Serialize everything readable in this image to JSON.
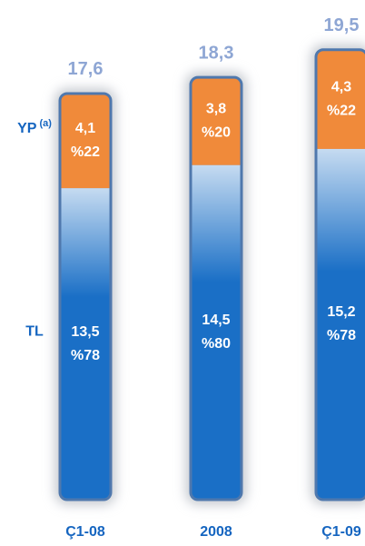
{
  "chart_data": {
    "type": "stacked-bar",
    "categories": [
      "Ç1-08",
      "2008",
      "Ç1-09"
    ],
    "series": [
      {
        "name": "TL",
        "color": "#1a6fc6",
        "values": [
          13.5,
          14.5,
          15.2
        ],
        "value_labels": [
          "13,5",
          "14,5",
          "15,2"
        ],
        "share_labels": [
          "%78",
          "%80",
          "%78"
        ]
      },
      {
        "name": "YP",
        "name_note": "(a)",
        "color": "#f08a3a",
        "values": [
          4.1,
          3.8,
          4.3
        ],
        "value_labels": [
          "4,1",
          "3,8",
          "4,3"
        ],
        "share_labels": [
          "%22",
          "%20",
          "%22"
        ]
      }
    ],
    "total_labels": [
      "17,6",
      "18,3",
      "19,5"
    ]
  }
}
